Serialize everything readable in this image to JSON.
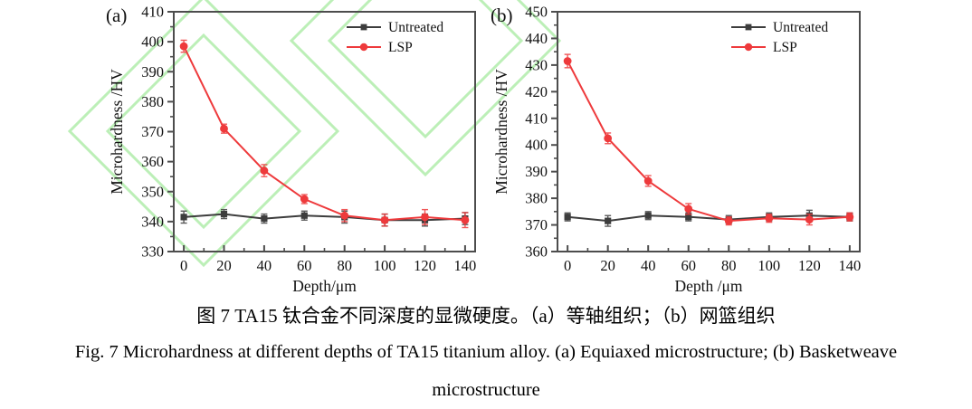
{
  "caption": {
    "zh": "图 7 TA15 钛合金不同深度的显微硬度。（a）等轴组织；（b）网篮组织",
    "en_line1": "Fig. 7 Microhardness at different depths of TA15 titanium alloy. (a) Equiaxed microstructure; (b) Basketweave",
    "en_line2": "microstructure"
  },
  "colors": {
    "untreated": "#3d3d3d",
    "lsp": "#ee3a3c",
    "frame": "#4d4d4d",
    "watermark": "#b9efb4"
  },
  "chart_data": [
    {
      "type": "line",
      "panel_label": "(a)",
      "title": "",
      "xlabel": "Depth/μm",
      "ylabel": "Microhardness /HV",
      "x": [
        0,
        20,
        40,
        60,
        80,
        100,
        120,
        140
      ],
      "xlim": [
        -5,
        145
      ],
      "ylim": [
        330,
        410
      ],
      "xtick_step": 20,
      "ytick_step": 10,
      "minor_ticks": true,
      "grid": false,
      "legend_position": "top-right",
      "series": [
        {
          "name": "Untreated",
          "marker": "square",
          "color": "#3d3d3d",
          "values": [
            341.5,
            342.5,
            341,
            342,
            341.5,
            340.5,
            340.5,
            341
          ],
          "errors": [
            2,
            1.5,
            1.5,
            1.5,
            2,
            2,
            2,
            2
          ]
        },
        {
          "name": "LSP",
          "marker": "circle",
          "color": "#ee3a3c",
          "values": [
            398.5,
            371,
            357,
            347.5,
            342,
            340.5,
            341.5,
            340.5
          ],
          "errors": [
            2,
            1.5,
            2,
            1.5,
            2,
            2,
            2.5,
            2.5
          ]
        }
      ]
    },
    {
      "type": "line",
      "panel_label": "(b)",
      "title": "",
      "xlabel": "Depth /μm",
      "ylabel": "Microhardness /HV",
      "x": [
        0,
        20,
        40,
        60,
        80,
        100,
        120,
        140
      ],
      "xlim": [
        -5,
        145
      ],
      "ylim": [
        360,
        450
      ],
      "xtick_step": 20,
      "ytick_step": 10,
      "minor_ticks": true,
      "grid": false,
      "legend_position": "top-right",
      "series": [
        {
          "name": "Untreated",
          "marker": "square",
          "color": "#3d3d3d",
          "values": [
            373,
            371.5,
            373.5,
            373,
            372,
            373,
            373.5,
            373
          ],
          "errors": [
            1.5,
            2,
            1.5,
            1.5,
            1.5,
            1.5,
            2,
            1.5
          ]
        },
        {
          "name": "LSP",
          "marker": "circle",
          "color": "#ee3a3c",
          "values": [
            431.5,
            402.5,
            386.5,
            376,
            371.5,
            372.5,
            372,
            373
          ],
          "errors": [
            2.5,
            2,
            2,
            2,
            1.5,
            1.5,
            2,
            1.5
          ]
        }
      ]
    }
  ]
}
